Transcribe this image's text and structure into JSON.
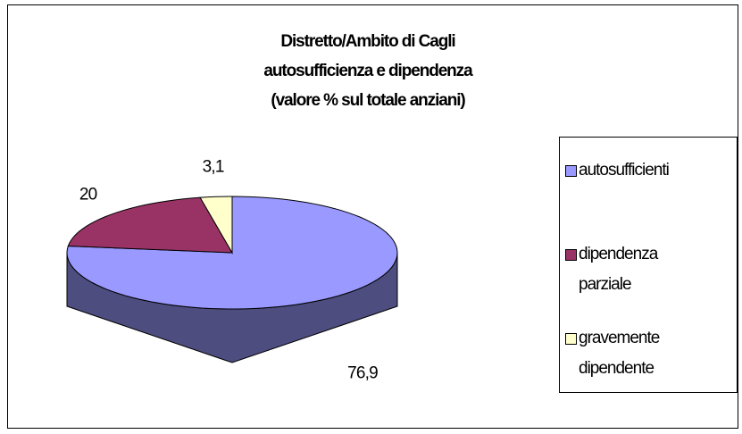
{
  "chart_data": {
    "type": "pie3d",
    "title": [
      "Distretto/Ambito di Cagli",
      "autosufficienza e dipendenza",
      "(valore % sul totale anziani)"
    ],
    "categories": [
      "autosufficienti",
      "dipendenza parziale",
      "gravemente dipendente"
    ],
    "values": [
      76.9,
      20,
      3.1
    ],
    "value_labels": [
      "76,9",
      "20",
      "3,1"
    ],
    "colors": [
      "#9999ff",
      "#993366",
      "#ffffcc"
    ],
    "legend": "right"
  }
}
